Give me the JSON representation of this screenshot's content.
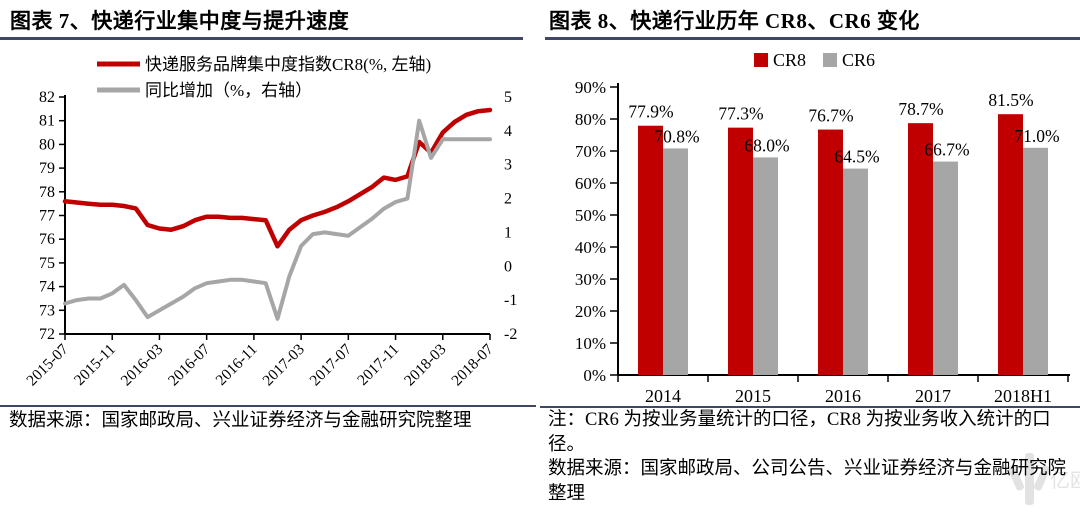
{
  "colors": {
    "cr8_red": "#c00000",
    "cr6_gray": "#a6a6a6",
    "rule_navy": "#3e4765",
    "axis_black": "#000000",
    "watermark_gray": "#e0e0e0"
  },
  "left_panel": {
    "title": "图表 7、快递行业集中度与提升速度",
    "source": "数据来源：国家邮政局、兴业证券经济与金融研究院整理"
  },
  "right_panel": {
    "title": "图表 8、快递行业历年 CR8、CR6 变化",
    "note": "注：CR6 为按业务量统计的口径，CR8 为按业务收入统计的口径。",
    "source": "数据来源：国家邮政局、公司公告、兴业证券经济与金融研究院整理",
    "watermark": "亿欧"
  },
  "chart_data": [
    {
      "type": "line",
      "title": "",
      "legend_position": "top",
      "grid": false,
      "legend": [
        "快递服务品牌集中度指数CR8(%, 左轴)",
        "同比增加（%，右轴）"
      ],
      "x": [
        "2015-07",
        "2015-08",
        "2015-09",
        "2015-10",
        "2015-11",
        "2015-12",
        "2016-01",
        "2016-02",
        "2016-03",
        "2016-04",
        "2016-05",
        "2016-06",
        "2016-07",
        "2016-08",
        "2016-09",
        "2016-10",
        "2016-11",
        "2016-12",
        "2017-01",
        "2017-02",
        "2017-03",
        "2017-04",
        "2017-05",
        "2017-06",
        "2017-07",
        "2017-08",
        "2017-09",
        "2017-10",
        "2017-11",
        "2017-12",
        "2018-01",
        "2018-02",
        "2018-03",
        "2018-04",
        "2018-05",
        "2018-06",
        "2018-07"
      ],
      "x_tick_labels": [
        "2015-07",
        "2015-11",
        "2016-03",
        "2016-07",
        "2016-11",
        "2017-03",
        "2017-07",
        "2017-11",
        "2018-03",
        "2018-07"
      ],
      "x_tick_every": 4,
      "series": [
        {
          "name": "快递服务品牌集中度指数CR8(%, 左轴)",
          "axis": "left",
          "color": "#c00000",
          "values": [
            77.6,
            77.55,
            77.5,
            77.45,
            77.45,
            77.4,
            77.3,
            76.6,
            76.45,
            76.4,
            76.55,
            76.8,
            76.95,
            76.95,
            76.9,
            76.9,
            76.85,
            76.8,
            75.7,
            76.4,
            76.8,
            77.0,
            77.15,
            77.35,
            77.6,
            77.9,
            78.2,
            78.6,
            78.5,
            78.65,
            80.1,
            79.65,
            80.5,
            80.95,
            81.25,
            81.4,
            81.45
          ]
        },
        {
          "name": "同比增加（%，右轴）",
          "axis": "right",
          "color": "#a6a6a6",
          "values": [
            -1.1,
            -1.0,
            -0.95,
            -0.95,
            -0.8,
            -0.55,
            -1.0,
            -1.5,
            -1.3,
            -1.1,
            -0.9,
            -0.65,
            -0.5,
            -0.45,
            -0.4,
            -0.4,
            -0.45,
            -0.5,
            -1.55,
            -0.3,
            0.6,
            0.95,
            1.0,
            0.95,
            0.9,
            1.15,
            1.4,
            1.7,
            1.9,
            2.0,
            4.3,
            3.2,
            3.75,
            3.75,
            3.75,
            3.75,
            3.75
          ]
        }
      ],
      "left_ylim": [
        72,
        82
      ],
      "left_ticks": [
        72,
        73,
        74,
        75,
        76,
        77,
        78,
        79,
        80,
        81,
        82
      ],
      "right_ylim": [
        -2,
        5
      ],
      "right_ticks": [
        -2,
        -1,
        0,
        1,
        2,
        3,
        4,
        5
      ]
    },
    {
      "type": "bar",
      "title": "",
      "legend_position": "top",
      "grid": false,
      "categories": [
        "2014",
        "2015",
        "2016",
        "2017",
        "2018H1"
      ],
      "series": [
        {
          "name": "CR8",
          "color": "#c00000",
          "values": [
            77.9,
            77.3,
            76.7,
            78.7,
            81.5
          ],
          "labels": [
            "77.9%",
            "77.3%",
            "76.7%",
            "78.7%",
            "81.5%"
          ]
        },
        {
          "name": "CR6",
          "color": "#a6a6a6",
          "values": [
            70.8,
            68.0,
            64.5,
            66.7,
            71.0
          ],
          "labels": [
            "70.8%",
            "68.0%",
            "64.5%",
            "66.7%",
            "71.0%"
          ]
        }
      ],
      "ylim": [
        0,
        90
      ],
      "y_ticks": [
        0,
        10,
        20,
        30,
        40,
        50,
        60,
        70,
        80,
        90
      ],
      "y_tick_suffix": "%"
    }
  ]
}
